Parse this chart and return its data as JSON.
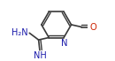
{
  "bg_color": "#ffffff",
  "bond_color": "#3a3a3a",
  "n_color": "#1a1aaa",
  "o_color": "#cc2200",
  "bond_lw": 1.2,
  "dbo": 0.018,
  "figsize": [
    1.3,
    0.69
  ],
  "dpi": 100,
  "labels": {
    "N_pyr": {
      "text": "N",
      "fontsize": 7.2,
      "color": "#1a1aaa"
    },
    "NH2": {
      "text": "H₂N",
      "fontsize": 7.0,
      "color": "#1a1aaa"
    },
    "NH": {
      "text": "NH",
      "fontsize": 7.0,
      "color": "#1a1aaa"
    },
    "O": {
      "text": "O",
      "fontsize": 7.2,
      "color": "#cc2200"
    }
  }
}
